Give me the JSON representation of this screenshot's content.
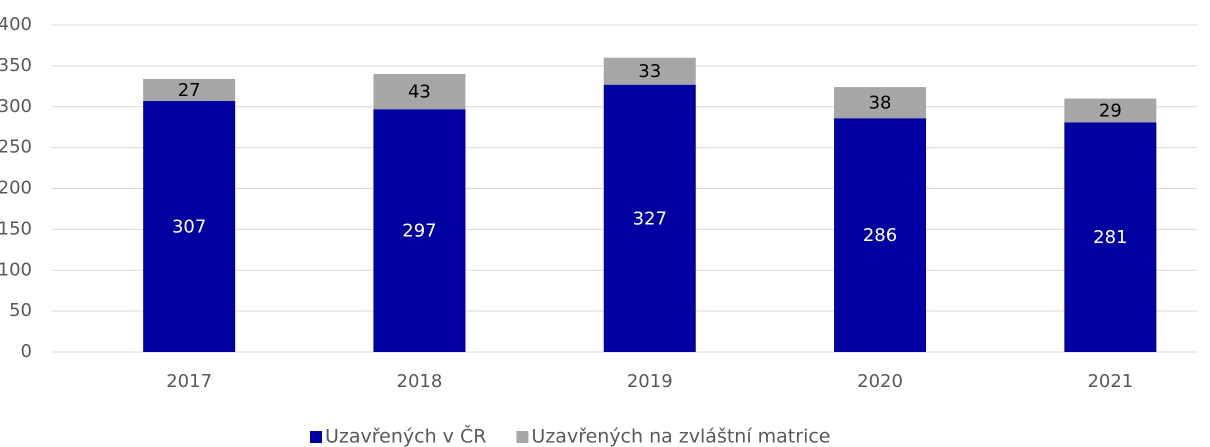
{
  "chart_data": {
    "type": "stacked_bar",
    "categories": [
      "2017",
      "2018",
      "2019",
      "2020",
      "2021"
    ],
    "series": [
      {
        "name": "Uzavřených v ČR",
        "color": "#0000a0",
        "values": [
          307,
          297,
          327,
          286,
          281
        ]
      },
      {
        "name": "Uzavřených na zvláštní matrice",
        "color": "#a6a6a6",
        "values": [
          27,
          43,
          33,
          38,
          29
        ]
      }
    ],
    "ylim": [
      0,
      400
    ],
    "yticks": [
      0,
      50,
      100,
      150,
      200,
      250,
      300,
      350,
      400
    ],
    "grid": true,
    "legend": "bottom"
  }
}
